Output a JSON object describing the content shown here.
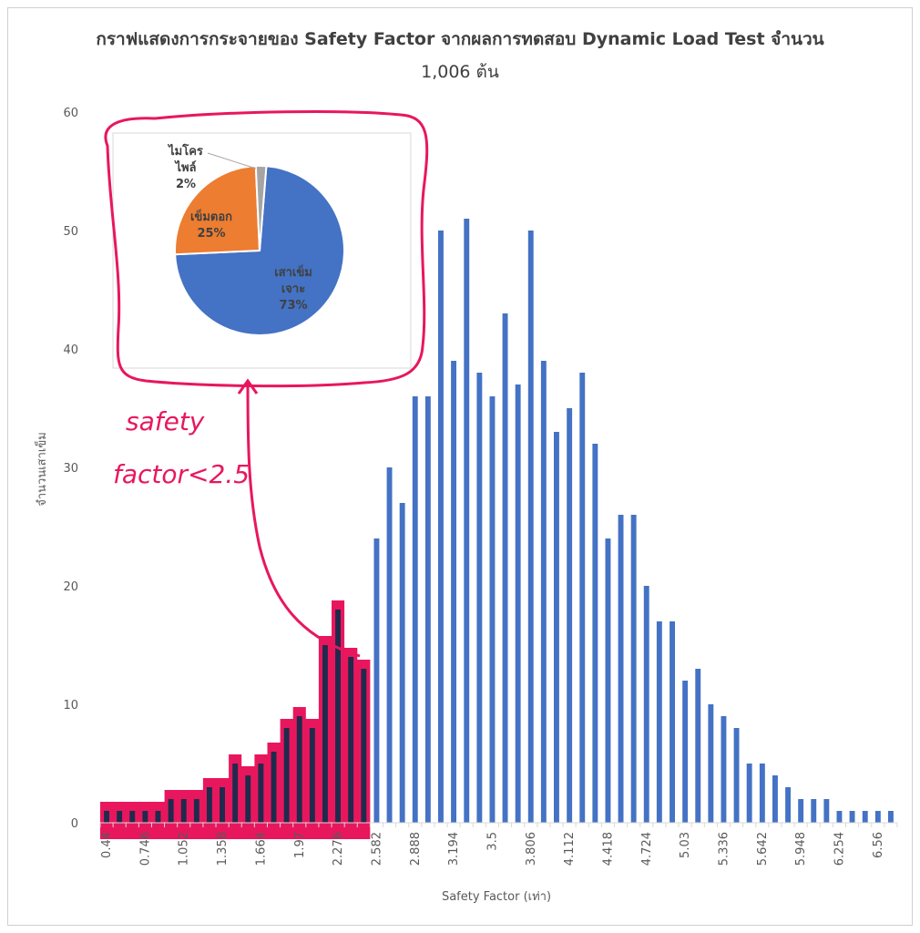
{
  "title_line1": "กราฟแสดงการกระจายของ Safety Factor จากผลการทดสอบ Dynamic Load Test จำนวน",
  "title_line2": "1,006 ต้น",
  "annotation": {
    "line1": "safety",
    "line2": "factor<2.5"
  },
  "chart_data": [
    {
      "type": "bar",
      "xlabel": "Safety Factor (เท่า)",
      "ylabel": "จำนวนเสาเข็ม",
      "ylim": [
        0,
        60
      ],
      "yticks": [
        0,
        10,
        20,
        30,
        40,
        50,
        60
      ],
      "grid": false,
      "color": "#4472c4",
      "highlight_color": "#e8175d",
      "highlight_below": 2.5,
      "x_tick_labels": [
        "0.44",
        "0.746",
        "1.052",
        "1.358",
        "1.664",
        "1.97",
        "2.276",
        "2.582",
        "2.888",
        "3.194",
        "3.5",
        "3.806",
        "4.112",
        "4.418",
        "4.724",
        "5.03",
        "5.336",
        "5.642",
        "5.948",
        "6.254",
        "6.56"
      ],
      "x": [
        0.44,
        0.542,
        0.644,
        0.746,
        0.848,
        0.95,
        1.052,
        1.154,
        1.256,
        1.358,
        1.46,
        1.562,
        1.664,
        1.766,
        1.868,
        1.97,
        2.072,
        2.174,
        2.276,
        2.378,
        2.48,
        2.582,
        2.684,
        2.786,
        2.888,
        2.99,
        3.092,
        3.194,
        3.296,
        3.398,
        3.5,
        3.602,
        3.704,
        3.806,
        3.908,
        4.01,
        4.112,
        4.214,
        4.316,
        4.418,
        4.52,
        4.622,
        4.724,
        4.826,
        4.928,
        5.03,
        5.132,
        5.234,
        5.336,
        5.438,
        5.54,
        5.642,
        5.744,
        5.846,
        5.948,
        6.05,
        6.152,
        6.254,
        6.356,
        6.458,
        6.56,
        6.662
      ],
      "values": [
        1,
        1,
        1,
        1,
        1,
        2,
        2,
        2,
        3,
        3,
        5,
        4,
        5,
        6,
        8,
        9,
        8,
        15,
        18,
        14,
        13,
        24,
        30,
        27,
        36,
        36,
        50,
        39,
        51,
        38,
        36,
        43,
        37,
        50,
        39,
        33,
        35,
        38,
        32,
        24,
        26,
        26,
        20,
        17,
        17,
        12,
        13,
        10,
        9,
        8,
        5,
        5,
        4,
        3,
        2,
        2,
        2,
        1,
        1,
        1,
        1,
        1
      ]
    },
    {
      "type": "pie",
      "slices": [
        {
          "label": "เสาเข็ม เจาะ",
          "line1": "เสาเข็ม",
          "line2": "เจาะ",
          "value": 73,
          "pct_label": "73%",
          "color": "#4472c4"
        },
        {
          "label": "เข็มตอก",
          "line1": "เข็มตอก",
          "line2": "",
          "value": 25,
          "pct_label": "25%",
          "color": "#ed7d31"
        },
        {
          "label": "ไมโคร ไพล์",
          "line1": "ไมโคร",
          "line2": "ไพล์",
          "value": 2,
          "pct_label": "2%",
          "color": "#a5a5a5"
        }
      ]
    }
  ]
}
